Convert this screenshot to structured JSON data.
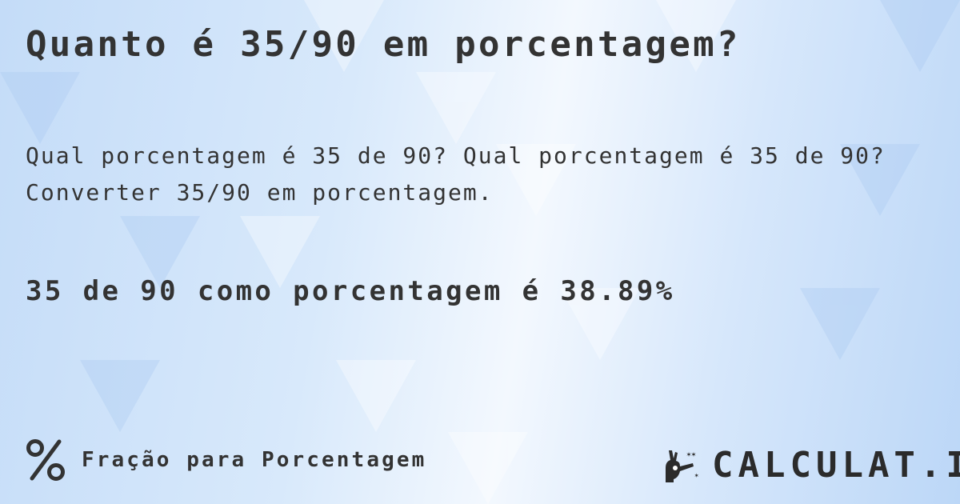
{
  "title": "Quanto é 35/90 em porcentagem?",
  "question_line1": "Qual porcentagem é 35 de 90? Qual porcentagem é 35 de 90?",
  "question_line2": "Converter 35/90 em porcentagem.",
  "result": "35 de 90 como porcentagem é 38.89%",
  "footer": {
    "icon": "percent-icon",
    "label": "Fração para Porcentagem"
  },
  "logo": {
    "text": "CALCULAT.IO",
    "icon": "magic-hand-icon"
  },
  "colors": {
    "text": "#333333",
    "background": "#d8e9fb"
  }
}
